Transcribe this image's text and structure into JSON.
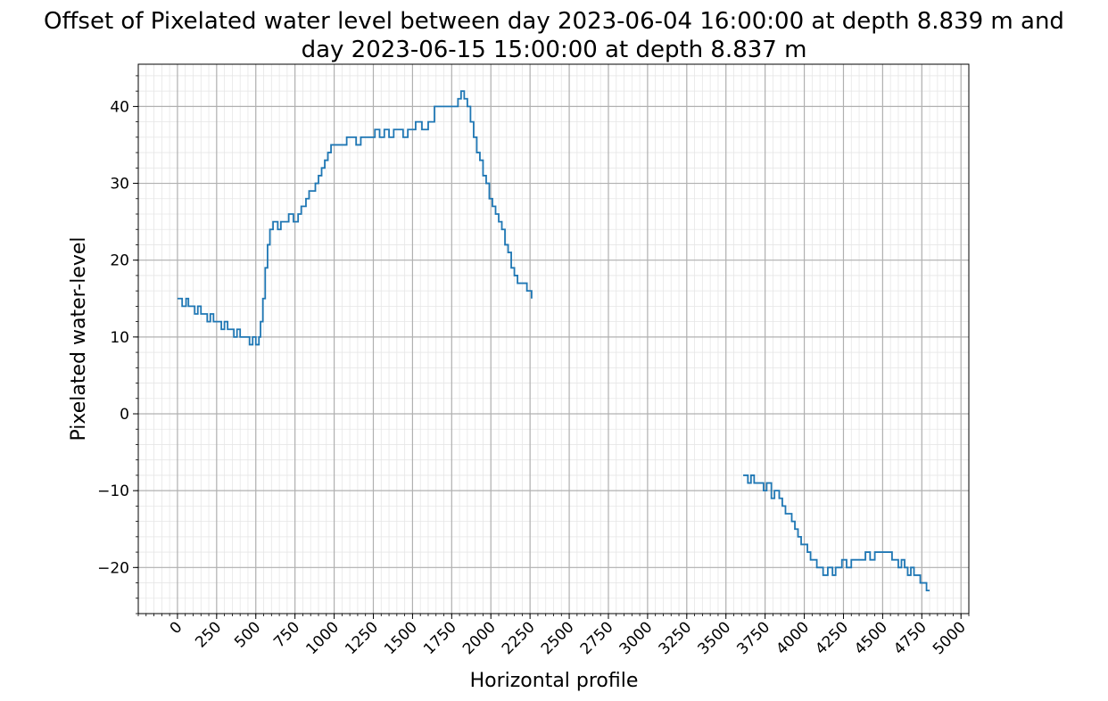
{
  "chart_data": {
    "type": "line",
    "title_lines": [
      "Offset of Pixelated water level between day 2023-06-04 16:00:00 at depth 8.839 m and",
      "day 2023-06-15 15:00:00 at depth 8.837 m"
    ],
    "xlabel": "Horizontal profile",
    "ylabel": "Pixelated water-level",
    "xlim": [
      -250,
      5050
    ],
    "ylim": [
      -26,
      45.5
    ],
    "x_ticks": [
      0,
      250,
      500,
      750,
      1000,
      1250,
      1500,
      1750,
      2000,
      2250,
      2500,
      2750,
      3000,
      3250,
      3500,
      3750,
      4000,
      4250,
      4500,
      4750,
      5000
    ],
    "y_ticks": [
      -20,
      -10,
      0,
      10,
      20,
      30,
      40
    ],
    "grid": "major and minor",
    "line_color": "#1f77b4",
    "series": [
      {
        "segments": [
          [
            [
              0,
              15
            ],
            [
              30,
              14
            ],
            [
              55,
              15
            ],
            [
              70,
              14
            ],
            [
              110,
              13
            ],
            [
              130,
              14
            ],
            [
              150,
              13
            ],
            [
              190,
              12
            ],
            [
              210,
              13
            ],
            [
              230,
              12
            ],
            [
              260,
              12
            ],
            [
              280,
              11
            ],
            [
              300,
              12
            ],
            [
              320,
              11
            ],
            [
              360,
              10
            ],
            [
              380,
              11
            ],
            [
              400,
              10
            ],
            [
              440,
              10
            ],
            [
              460,
              9
            ],
            [
              480,
              10
            ],
            [
              500,
              9
            ],
            [
              520,
              10
            ],
            [
              530,
              12
            ],
            [
              545,
              15
            ],
            [
              560,
              19
            ],
            [
              575,
              22
            ],
            [
              590,
              24
            ],
            [
              610,
              25
            ],
            [
              640,
              24
            ],
            [
              660,
              25
            ],
            [
              690,
              25
            ],
            [
              710,
              26
            ],
            [
              740,
              25
            ],
            [
              770,
              26
            ],
            [
              790,
              27
            ],
            [
              820,
              28
            ],
            [
              840,
              29
            ],
            [
              860,
              29
            ],
            [
              880,
              30
            ],
            [
              900,
              31
            ],
            [
              920,
              32
            ],
            [
              940,
              33
            ],
            [
              960,
              34
            ],
            [
              980,
              35
            ],
            [
              1010,
              35
            ],
            [
              1040,
              35
            ],
            [
              1060,
              35
            ],
            [
              1080,
              36
            ],
            [
              1110,
              36
            ],
            [
              1140,
              35
            ],
            [
              1170,
              36
            ],
            [
              1200,
              36
            ],
            [
              1230,
              36
            ],
            [
              1260,
              37
            ],
            [
              1290,
              36
            ],
            [
              1320,
              37
            ],
            [
              1350,
              36
            ],
            [
              1380,
              37
            ],
            [
              1410,
              37
            ],
            [
              1440,
              36
            ],
            [
              1470,
              37
            ],
            [
              1500,
              37
            ],
            [
              1520,
              38
            ],
            [
              1560,
              37
            ],
            [
              1600,
              38
            ],
            [
              1640,
              40
            ],
            [
              1680,
              40
            ],
            [
              1720,
              40
            ],
            [
              1760,
              40
            ],
            [
              1790,
              41
            ],
            [
              1810,
              42
            ],
            [
              1830,
              41
            ],
            [
              1850,
              40
            ],
            [
              1870,
              38
            ],
            [
              1890,
              36
            ],
            [
              1910,
              34
            ],
            [
              1930,
              33
            ],
            [
              1950,
              31
            ],
            [
              1970,
              30
            ],
            [
              1990,
              28
            ],
            [
              2010,
              27
            ],
            [
              2030,
              26
            ],
            [
              2050,
              25
            ],
            [
              2070,
              24
            ],
            [
              2090,
              22
            ],
            [
              2110,
              21
            ],
            [
              2130,
              19
            ],
            [
              2150,
              18
            ],
            [
              2170,
              17
            ],
            [
              2200,
              17
            ],
            [
              2230,
              16
            ],
            [
              2260,
              15
            ]
          ],
          [
            [
              3610,
              -8
            ],
            [
              3640,
              -9
            ],
            [
              3660,
              -8
            ],
            [
              3680,
              -9
            ],
            [
              3720,
              -9
            ],
            [
              3740,
              -10
            ],
            [
              3760,
              -9
            ],
            [
              3790,
              -11
            ],
            [
              3810,
              -10
            ],
            [
              3840,
              -11
            ],
            [
              3860,
              -12
            ],
            [
              3880,
              -13
            ],
            [
              3900,
              -13
            ],
            [
              3920,
              -14
            ],
            [
              3940,
              -15
            ],
            [
              3960,
              -16
            ],
            [
              3980,
              -17
            ],
            [
              4000,
              -17
            ],
            [
              4020,
              -18
            ],
            [
              4040,
              -19
            ],
            [
              4060,
              -19
            ],
            [
              4080,
              -20
            ],
            [
              4100,
              -20
            ],
            [
              4120,
              -21
            ],
            [
              4150,
              -20
            ],
            [
              4180,
              -21
            ],
            [
              4200,
              -20
            ],
            [
              4220,
              -20
            ],
            [
              4240,
              -19
            ],
            [
              4270,
              -20
            ],
            [
              4300,
              -19
            ],
            [
              4330,
              -19
            ],
            [
              4360,
              -19
            ],
            [
              4390,
              -18
            ],
            [
              4420,
              -19
            ],
            [
              4450,
              -18
            ],
            [
              4480,
              -18
            ],
            [
              4510,
              -18
            ],
            [
              4540,
              -18
            ],
            [
              4560,
              -19
            ],
            [
              4580,
              -19
            ],
            [
              4600,
              -20
            ],
            [
              4620,
              -19
            ],
            [
              4640,
              -20
            ],
            [
              4660,
              -21
            ],
            [
              4680,
              -20
            ],
            [
              4700,
              -21
            ],
            [
              4720,
              -21
            ],
            [
              4740,
              -22
            ],
            [
              4760,
              -22
            ],
            [
              4780,
              -23
            ],
            [
              4800,
              -23
            ]
          ]
        ]
      }
    ]
  }
}
